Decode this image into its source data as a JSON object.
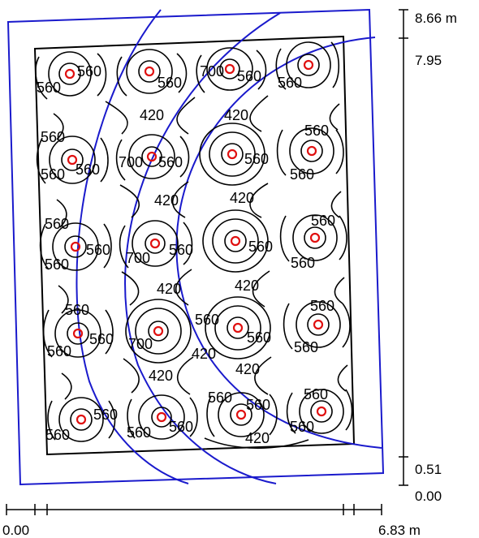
{
  "colors": {
    "background": "#ffffff",
    "contour": "#000000",
    "room_outline": "#1a1acc",
    "luminaire": "#e01010",
    "dimension": "#000000"
  },
  "dimensions": {
    "y_top": "8.66 m",
    "y_upper": "7.95",
    "y_lower": "0.51",
    "y_zero": "0.00",
    "x_zero": "0.00",
    "x_max": "6.83 m"
  },
  "contour_labels": [
    "560",
    "560",
    "560",
    "700",
    "560",
    "560",
    "420",
    "420",
    "560",
    "560",
    "560",
    "700",
    "560",
    "560",
    "560",
    "560",
    "420",
    "420",
    "560",
    "560",
    "560",
    "700",
    "560",
    "560",
    "560",
    "560",
    "420",
    "420",
    "560",
    "560",
    "560",
    "700",
    "560",
    "560",
    "560",
    "560",
    "420",
    "420",
    "420",
    "560",
    "560",
    "560",
    "560",
    "560",
    "560",
    "560",
    "560",
    "420"
  ],
  "luminaire_icon": "ring-marker-icon",
  "luminaire_count": 20
}
